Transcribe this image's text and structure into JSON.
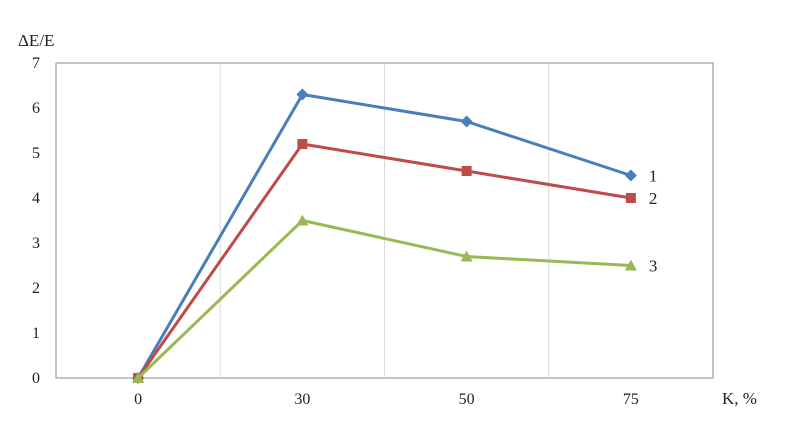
{
  "chart_data": {
    "type": "line",
    "title": "",
    "ylabel": "ΔΕ/Ε",
    "xlabel": "K, %",
    "categories": [
      "0",
      "30",
      "50",
      "75"
    ],
    "ylim": [
      0,
      7
    ],
    "yticks": [
      "0",
      "1",
      "2",
      "3",
      "4",
      "5",
      "6",
      "7"
    ],
    "grid": "vertical",
    "legend": "none",
    "series": [
      {
        "name": "1",
        "values": [
          0,
          6.3,
          5.7,
          4.5
        ],
        "color": "#4a7ebb",
        "marker": "diamond"
      },
      {
        "name": "2",
        "values": [
          0,
          5.2,
          4.6,
          4.0
        ],
        "color": "#be4b48",
        "marker": "square"
      },
      {
        "name": "3",
        "values": [
          0,
          3.5,
          2.7,
          2.5
        ],
        "color": "#98b954",
        "marker": "triangle"
      }
    ]
  }
}
